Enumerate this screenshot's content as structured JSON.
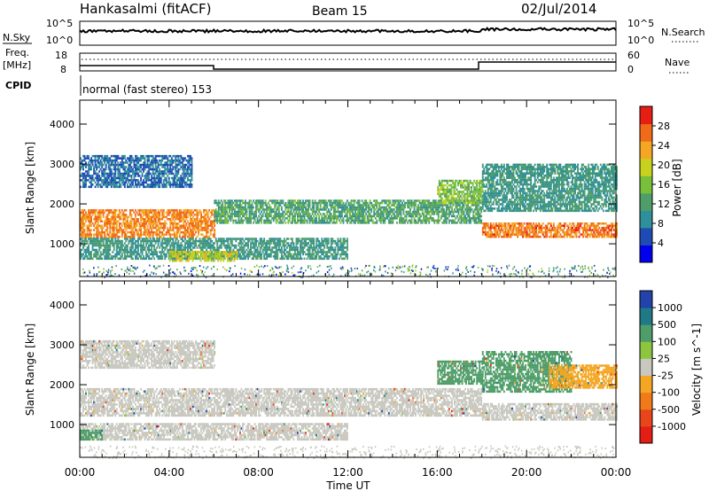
{
  "header": {
    "site": "Hankasalmi (fitACF)",
    "beam": "Beam 15",
    "date": "02/Jul/2014"
  },
  "noise_panel": {
    "label": "N.Sky",
    "left_ticks": [
      "10^5",
      "10^0"
    ],
    "right_label": "N.Search",
    "right_ticks": [
      "10^5",
      "10^0"
    ]
  },
  "freq_panel": {
    "label_line1": "Freq.",
    "label_line2": "[MHz]",
    "left_ticks": [
      "18",
      "8"
    ],
    "right_label": "Nave",
    "right_ticks": [
      "60",
      "0"
    ]
  },
  "cpid_panel": {
    "label": "CPID",
    "text": "normal (fast stereo) 153"
  },
  "xaxis": {
    "title": "Time UT",
    "ticks": [
      "00:00",
      "04:00",
      "08:00",
      "12:00",
      "16:00",
      "20:00",
      "00:00"
    ],
    "tick_hours": [
      0,
      4,
      8,
      12,
      16,
      20,
      24
    ],
    "range_hours": [
      0,
      24
    ]
  },
  "colors": {
    "power": [
      "#0000ee",
      "#1e4bb4",
      "#2f8f9a",
      "#4f9e6a",
      "#78c039",
      "#c8d21c",
      "#f5a623",
      "#f06a1a",
      "#e61e14"
    ],
    "velocity": [
      "#2244aa",
      "#1f7a86",
      "#4f9e6a",
      "#8cc63f",
      "#c8c8c0",
      "#f5a623",
      "#f07a1a",
      "#e8451a",
      "#e41e14"
    ]
  },
  "chart_data": [
    {
      "type": "heatmap",
      "name": "power",
      "ylabel": "Slant Range [km]",
      "yticks": [
        "1000",
        "2000",
        "3000",
        "4000"
      ],
      "ytick_values": [
        1000,
        2000,
        3000,
        4000
      ],
      "ylim": [
        180,
        4600
      ],
      "colorbar": {
        "label": "Power [dB]",
        "ticks": [
          "4",
          "8",
          "12",
          "16",
          "20",
          "24",
          "28"
        ],
        "tick_values": [
          4,
          8,
          12,
          16,
          20,
          24,
          28
        ],
        "range": [
          0,
          32
        ]
      },
      "echo_bands": [
        {
          "t_start": 0,
          "t_end": 6,
          "r_min": 1150,
          "r_max": 1850,
          "power": 26
        },
        {
          "t_start": 6,
          "t_end": 18,
          "r_min": 1500,
          "r_max": 2100,
          "power": 12
        },
        {
          "t_start": 18,
          "t_end": 24,
          "r_min": 1150,
          "r_max": 1500,
          "power": 27
        },
        {
          "t_start": 0,
          "t_end": 12,
          "r_min": 600,
          "r_max": 1100,
          "power": 10
        },
        {
          "t_start": 4,
          "t_end": 7,
          "r_min": 550,
          "r_max": 800,
          "power": 20
        },
        {
          "t_start": 0,
          "t_end": 5,
          "r_min": 2400,
          "r_max": 3200,
          "power": 6
        },
        {
          "t_start": 18,
          "t_end": 24,
          "r_min": 1800,
          "r_max": 3000,
          "power": 10
        },
        {
          "t_start": 16,
          "t_end": 18,
          "r_min": 2000,
          "r_max": 2600,
          "power": 16
        }
      ]
    },
    {
      "type": "heatmap",
      "name": "velocity",
      "ylabel": "Slant Range [km]",
      "yticks": [
        "1000",
        "2000",
        "3000",
        "4000"
      ],
      "ytick_values": [
        1000,
        2000,
        3000,
        4000
      ],
      "ylim": [
        180,
        4600
      ],
      "colorbar": {
        "label": "Velocity [m s^-1]",
        "ticks": [
          "1000",
          "500",
          "100",
          "25",
          "-25",
          "-100",
          "-500",
          "-1000"
        ]
      },
      "echo_bands": [
        {
          "t_start": 0,
          "t_end": 18,
          "r_min": 1200,
          "r_max": 1900,
          "category": "ground"
        },
        {
          "t_start": 18,
          "t_end": 24,
          "r_min": 1100,
          "r_max": 1500,
          "category": "ground"
        },
        {
          "t_start": 0,
          "t_end": 12,
          "r_min": 600,
          "r_max": 1000,
          "category": "ground"
        },
        {
          "t_start": 16,
          "t_end": 18,
          "r_min": 2000,
          "r_max": 2600,
          "category": "100"
        },
        {
          "t_start": 18,
          "t_end": 22,
          "r_min": 1800,
          "r_max": 2800,
          "category": "100"
        },
        {
          "t_start": 21,
          "t_end": 24,
          "r_min": 1900,
          "r_max": 2500,
          "category": "-100"
        },
        {
          "t_start": 0,
          "t_end": 1,
          "r_min": 600,
          "r_max": 850,
          "category": "100"
        },
        {
          "t_start": 0,
          "t_end": 6,
          "r_min": 2400,
          "r_max": 3100,
          "category": "ground"
        }
      ]
    }
  ]
}
